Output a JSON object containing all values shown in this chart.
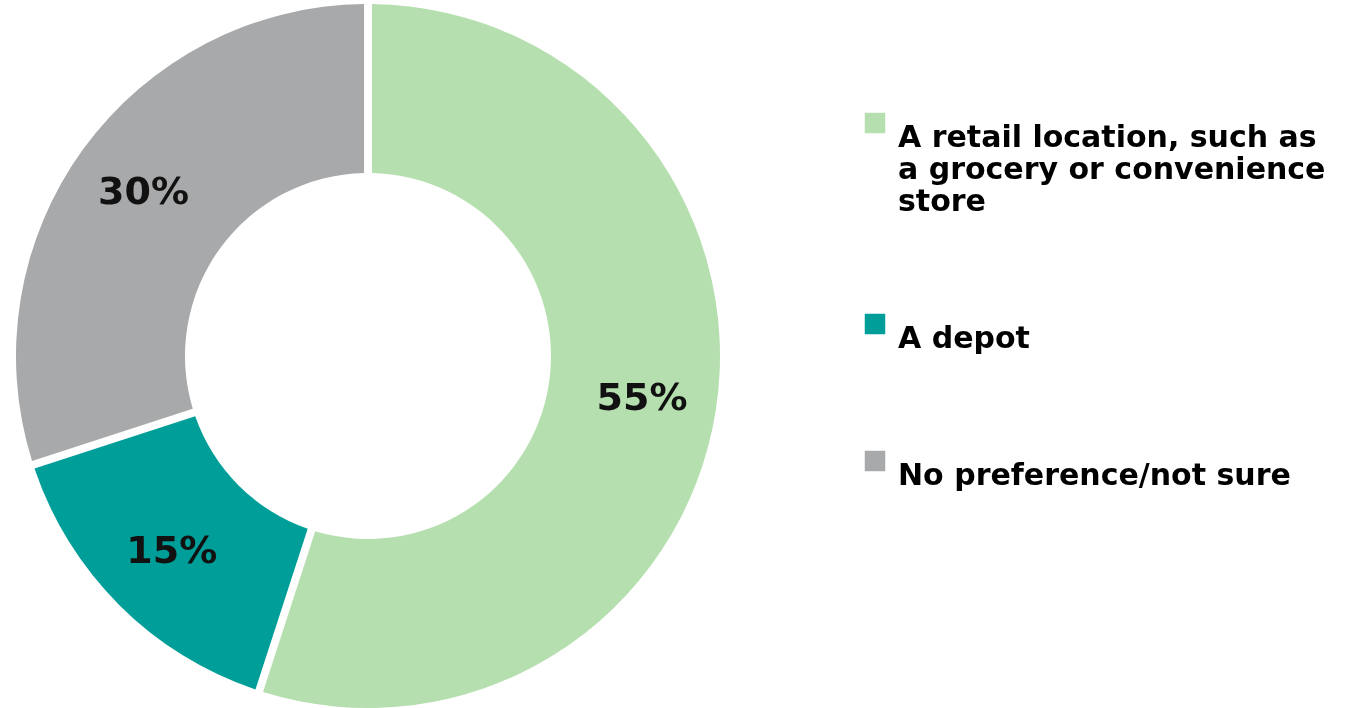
{
  "chart_data": {
    "type": "donut",
    "categories": [
      "A retail location, such as a grocery or convenience store",
      "A depot",
      "No preference/not sure"
    ],
    "values": [
      55,
      15,
      30
    ],
    "colors": [
      "#b5dfae",
      "#009e98",
      "#a7a9ab"
    ],
    "value_labels": [
      "55%",
      "15%",
      "30%"
    ],
    "legend": "right"
  }
}
